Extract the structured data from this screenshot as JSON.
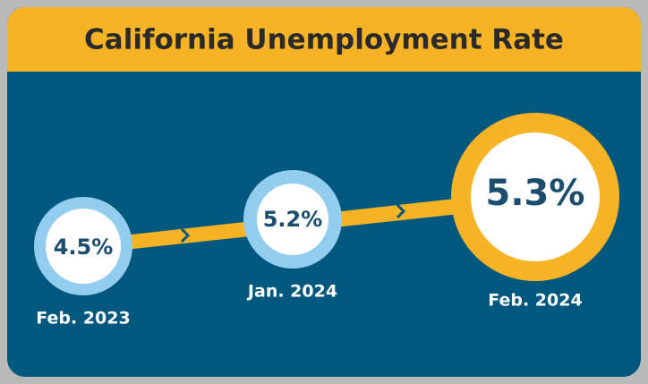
{
  "title": "California Unemployment Rate",
  "points": [
    {
      "value": "4.5%",
      "date": "Feb. 2023"
    },
    {
      "value": "5.2%",
      "date": "Jan. 2024"
    },
    {
      "value": "5.3%",
      "date": "Feb. 2024"
    }
  ]
}
